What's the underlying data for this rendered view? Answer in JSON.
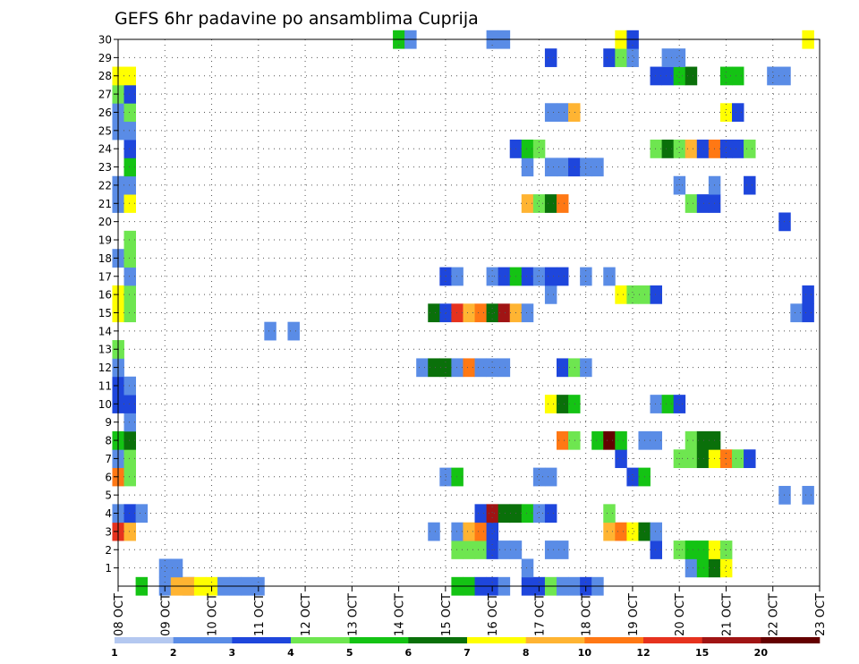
{
  "chart_data": {
    "type": "heatmap",
    "title": "GEFS 6hr padavine po ansamblima Cuprija",
    "x_tick_labels": [
      "08 OCT",
      "09 OCT",
      "10 OCT",
      "11 OCT",
      "12 OCT",
      "13 OCT",
      "14 OCT",
      "15 OCT",
      "16 OCT",
      "17 OCT",
      "18 OCT",
      "19 OCT",
      "20 OCT",
      "21 OCT",
      "22 OCT",
      "23 OCT"
    ],
    "y_tick_labels": [
      "1",
      "2",
      "3",
      "4",
      "5",
      "6",
      "7",
      "8",
      "9",
      "10",
      "11",
      "12",
      "13",
      "14",
      "15",
      "16",
      "17",
      "18",
      "19",
      "20",
      "21",
      "22",
      "23",
      "24",
      "25",
      "26",
      "27",
      "28",
      "29",
      "30"
    ],
    "xlim_days": [
      0,
      15
    ],
    "ylim_members": [
      0,
      30
    ],
    "grid": true,
    "legend": {
      "position": "bottom",
      "colors": [
        "#b4c8f0",
        "#5a8ce6",
        "#1e46dc",
        "#6ee650",
        "#14c314",
        "#0a700a",
        "#ffff00",
        "#ffb432",
        "#ff7814",
        "#e6321e",
        "#a01414",
        "#640000"
      ],
      "labels": [
        "1",
        "2",
        "3",
        "4",
        "5",
        "6",
        "7",
        "8",
        "10",
        "12",
        "15",
        "20"
      ]
    },
    "cells": [
      [
        0,
        0.5,
        4
      ],
      [
        0,
        1,
        1
      ],
      [
        0,
        1.5,
        1
      ],
      [
        0,
        1.25,
        7
      ],
      [
        0,
        1.5,
        7
      ],
      [
        0,
        1.75,
        6
      ],
      [
        0,
        2,
        6
      ],
      [
        0,
        2.25,
        1
      ],
      [
        0,
        2.5,
        1
      ],
      [
        0,
        2.75,
        1
      ],
      [
        0,
        3,
        1
      ],
      [
        0,
        7.25,
        4
      ],
      [
        0,
        7.5,
        4
      ],
      [
        0,
        7.75,
        2
      ],
      [
        0,
        8,
        2
      ],
      [
        0,
        8.25,
        1
      ],
      [
        0,
        8.75,
        2
      ],
      [
        0,
        9,
        2
      ],
      [
        0,
        9.25,
        3
      ],
      [
        0,
        9.5,
        1
      ],
      [
        0,
        9.75,
        1
      ],
      [
        0,
        10,
        2
      ],
      [
        0,
        10.25,
        1
      ],
      [
        1,
        1,
        1
      ],
      [
        1,
        1.25,
        1
      ],
      [
        1,
        8.75,
        1
      ],
      [
        1,
        12.25,
        1
      ],
      [
        1,
        12.5,
        4
      ],
      [
        1,
        12.75,
        5
      ],
      [
        1,
        13,
        6
      ],
      [
        2,
        7.25,
        3
      ],
      [
        2,
        7.5,
        3
      ],
      [
        2,
        7.75,
        3
      ],
      [
        2,
        8,
        2
      ],
      [
        2,
        8.25,
        1
      ],
      [
        2,
        8.5,
        1
      ],
      [
        2,
        9.25,
        1
      ],
      [
        2,
        9.5,
        1
      ],
      [
        2,
        11.5,
        2
      ],
      [
        2,
        12,
        3
      ],
      [
        2,
        12.25,
        4
      ],
      [
        2,
        12.5,
        4
      ],
      [
        2,
        12.75,
        6
      ],
      [
        2,
        13,
        3
      ],
      [
        3,
        0,
        9
      ],
      [
        3,
        0.25,
        7
      ],
      [
        3,
        6.75,
        1
      ],
      [
        3,
        7.25,
        1
      ],
      [
        3,
        7.5,
        7
      ],
      [
        3,
        7.75,
        8
      ],
      [
        3,
        8,
        2
      ],
      [
        3,
        10.5,
        7
      ],
      [
        3,
        10.75,
        8
      ],
      [
        3,
        11,
        6
      ],
      [
        3,
        11.25,
        5
      ],
      [
        3,
        11.5,
        1
      ],
      [
        4,
        0,
        1
      ],
      [
        4,
        0.25,
        2
      ],
      [
        4,
        0.5,
        1
      ],
      [
        4,
        7.75,
        2
      ],
      [
        4,
        8,
        10
      ],
      [
        4,
        8.25,
        5
      ],
      [
        4,
        8.5,
        5
      ],
      [
        4,
        8.75,
        4
      ],
      [
        4,
        9,
        1
      ],
      [
        4,
        9.25,
        2
      ],
      [
        4,
        10.5,
        3
      ],
      [
        5,
        14.25,
        1
      ],
      [
        5,
        14.75,
        1
      ],
      [
        6,
        0,
        8
      ],
      [
        6,
        0.25,
        3
      ],
      [
        6,
        7,
        1
      ],
      [
        6,
        7.25,
        4
      ],
      [
        6,
        9,
        1
      ],
      [
        6,
        9.25,
        1
      ],
      [
        6,
        11,
        2
      ],
      [
        6,
        11.25,
        4
      ],
      [
        7,
        0,
        1
      ],
      [
        7,
        0.25,
        3
      ],
      [
        7,
        10.75,
        2
      ],
      [
        7,
        12,
        3
      ],
      [
        7,
        12.25,
        3
      ],
      [
        7,
        12.5,
        5
      ],
      [
        7,
        12.75,
        6
      ],
      [
        7,
        13,
        8
      ],
      [
        7,
        13.25,
        3
      ],
      [
        7,
        13.5,
        2
      ],
      [
        8,
        0,
        4
      ],
      [
        8,
        0.25,
        5
      ],
      [
        8,
        9.5,
        8
      ],
      [
        8,
        9.75,
        3
      ],
      [
        8,
        10.25,
        4
      ],
      [
        8,
        10.5,
        11
      ],
      [
        8,
        10.75,
        4
      ],
      [
        8,
        11.25,
        1
      ],
      [
        8,
        11.5,
        1
      ],
      [
        8,
        12.25,
        3
      ],
      [
        8,
        12.5,
        5
      ],
      [
        8,
        12.75,
        5
      ],
      [
        9,
        0.25,
        1
      ],
      [
        10,
        0,
        2
      ],
      [
        10,
        0.25,
        2
      ],
      [
        10,
        9.25,
        6
      ],
      [
        10,
        9.5,
        5
      ],
      [
        10,
        9.75,
        4
      ],
      [
        10,
        11.5,
        1
      ],
      [
        10,
        11.75,
        4
      ],
      [
        10,
        12,
        2
      ],
      [
        11,
        0,
        2
      ],
      [
        11,
        0.25,
        1
      ],
      [
        12,
        0,
        1
      ],
      [
        12,
        6.5,
        1
      ],
      [
        12,
        6.75,
        5
      ],
      [
        12,
        7,
        5
      ],
      [
        12,
        7.25,
        1
      ],
      [
        12,
        7.5,
        8
      ],
      [
        12,
        7.75,
        1
      ],
      [
        12,
        8,
        1
      ],
      [
        12,
        8.25,
        1
      ],
      [
        12,
        9.5,
        2
      ],
      [
        12,
        9.75,
        3
      ],
      [
        12,
        10,
        1
      ],
      [
        13,
        0,
        3
      ],
      [
        14,
        3.25,
        1
      ],
      [
        14,
        3.75,
        1
      ],
      [
        15,
        0,
        6
      ],
      [
        15,
        0.25,
        3
      ],
      [
        15,
        6.75,
        5
      ],
      [
        15,
        7,
        2
      ],
      [
        15,
        7.25,
        9
      ],
      [
        15,
        7.5,
        7
      ],
      [
        15,
        7.75,
        8
      ],
      [
        15,
        8,
        5
      ],
      [
        15,
        8.25,
        10
      ],
      [
        15,
        8.5,
        7
      ],
      [
        15,
        8.75,
        1
      ],
      [
        15,
        14.5,
        1
      ],
      [
        15,
        14.75,
        2
      ],
      [
        16,
        0,
        6
      ],
      [
        16,
        0.25,
        3
      ],
      [
        16,
        9.25,
        1
      ],
      [
        16,
        10.75,
        6
      ],
      [
        16,
        11,
        3
      ],
      [
        16,
        11.25,
        3
      ],
      [
        16,
        11.5,
        2
      ],
      [
        16,
        14.75,
        2
      ],
      [
        17,
        0.25,
        1
      ],
      [
        17,
        7,
        2
      ],
      [
        17,
        7.25,
        1
      ],
      [
        17,
        8,
        1
      ],
      [
        17,
        8.25,
        2
      ],
      [
        17,
        8.5,
        4
      ],
      [
        17,
        8.75,
        2
      ],
      [
        17,
        9,
        1
      ],
      [
        17,
        9.25,
        2
      ],
      [
        17,
        9.5,
        2
      ],
      [
        17,
        10,
        1
      ],
      [
        17,
        10.5,
        1
      ],
      [
        18,
        0,
        1
      ],
      [
        18,
        0.25,
        3
      ],
      [
        19,
        0.25,
        3
      ],
      [
        20,
        14.25,
        2
      ],
      [
        21,
        0,
        1
      ],
      [
        21,
        0.25,
        6
      ],
      [
        21,
        8.75,
        7
      ],
      [
        21,
        9,
        3
      ],
      [
        21,
        9.25,
        5
      ],
      [
        21,
        9.5,
        8
      ],
      [
        21,
        12.25,
        3
      ],
      [
        21,
        12.5,
        2
      ],
      [
        21,
        12.75,
        2
      ],
      [
        22,
        0,
        1
      ],
      [
        22,
        0.25,
        1
      ],
      [
        22,
        12,
        1
      ],
      [
        22,
        12.75,
        1
      ],
      [
        22,
        13.5,
        2
      ],
      [
        23,
        0.25,
        4
      ],
      [
        23,
        8.75,
        1
      ],
      [
        23,
        9.25,
        1
      ],
      [
        23,
        9.5,
        1
      ],
      [
        23,
        9.75,
        2
      ],
      [
        23,
        10,
        1
      ],
      [
        23,
        10.25,
        1
      ],
      [
        24,
        0.25,
        2
      ],
      [
        24,
        8.5,
        2
      ],
      [
        24,
        8.75,
        4
      ],
      [
        24,
        9,
        3
      ],
      [
        24,
        11.5,
        3
      ],
      [
        24,
        11.75,
        5
      ],
      [
        24,
        12,
        3
      ],
      [
        24,
        12.25,
        7
      ],
      [
        24,
        12.5,
        2
      ],
      [
        24,
        12.75,
        8
      ],
      [
        24,
        13,
        2
      ],
      [
        24,
        13.25,
        2
      ],
      [
        24,
        13.5,
        3
      ],
      [
        25,
        0,
        1
      ],
      [
        25,
        0.25,
        1
      ],
      [
        26,
        0,
        1
      ],
      [
        26,
        0.25,
        3
      ],
      [
        26,
        9.25,
        1
      ],
      [
        26,
        9.5,
        1
      ],
      [
        26,
        9.75,
        7
      ],
      [
        26,
        13,
        6
      ],
      [
        26,
        13.25,
        2
      ],
      [
        27,
        0,
        3
      ],
      [
        27,
        0.25,
        2
      ],
      [
        28,
        0,
        6
      ],
      [
        28,
        0.25,
        6
      ],
      [
        28,
        11.5,
        2
      ],
      [
        28,
        11.75,
        2
      ],
      [
        28,
        12,
        4
      ],
      [
        28,
        12.25,
        5
      ],
      [
        28,
        13,
        4
      ],
      [
        28,
        13.25,
        4
      ],
      [
        28,
        14,
        1
      ],
      [
        28,
        14.25,
        1
      ],
      [
        29,
        9.25,
        2
      ],
      [
        29,
        10.5,
        2
      ],
      [
        29,
        10.75,
        3
      ],
      [
        29,
        11,
        1
      ],
      [
        29,
        11.75,
        1
      ],
      [
        29,
        12,
        1
      ],
      [
        30,
        6,
        4
      ],
      [
        30,
        6.25,
        1
      ],
      [
        30,
        8,
        1
      ],
      [
        30,
        8.25,
        1
      ],
      [
        30,
        10.75,
        6
      ],
      [
        30,
        11,
        2
      ],
      [
        30,
        14.75,
        6
      ]
    ]
  }
}
